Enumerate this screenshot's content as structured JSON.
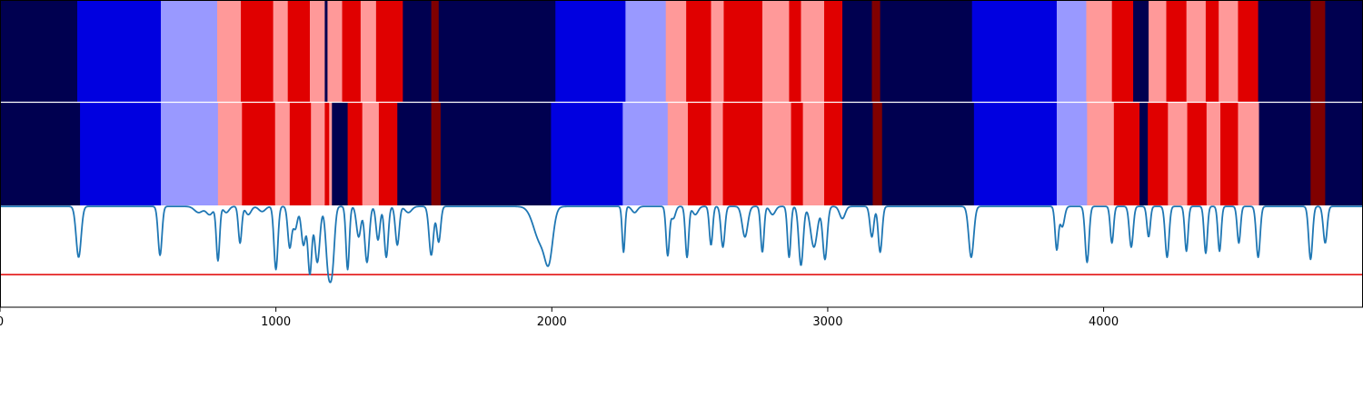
{
  "chart_data": {
    "type": "segmentation_with_signal",
    "xlim": [
      0,
      4940
    ],
    "xticks": [
      0,
      1000,
      2000,
      3000,
      4000
    ],
    "xtick_labels": [
      "0",
      "1000",
      "2000",
      "3000",
      "4000"
    ],
    "colors": {
      "0": "#000050",
      "1": "#0000e0",
      "2": "#9999ff",
      "3": "#ff9999",
      "4": "#e00000",
      "5": "#800000",
      "signal": "#1f77b4",
      "threshold": "#e00000"
    },
    "strips": [
      {
        "segments": [
          [
            0,
            280,
            0
          ],
          [
            280,
            583,
            1
          ],
          [
            583,
            787,
            2
          ],
          [
            787,
            873,
            3
          ],
          [
            873,
            990,
            4
          ],
          [
            990,
            1043,
            3
          ],
          [
            1043,
            1123,
            4
          ],
          [
            1123,
            1177,
            3
          ],
          [
            1177,
            1187,
            0
          ],
          [
            1187,
            1240,
            3
          ],
          [
            1240,
            1307,
            4
          ],
          [
            1307,
            1363,
            3
          ],
          [
            1363,
            1460,
            4
          ],
          [
            1460,
            1563,
            0
          ],
          [
            1563,
            1590,
            5
          ],
          [
            1590,
            2013,
            0
          ],
          [
            2013,
            2267,
            1
          ],
          [
            2267,
            2413,
            2
          ],
          [
            2413,
            2487,
            3
          ],
          [
            2487,
            2577,
            4
          ],
          [
            2577,
            2623,
            3
          ],
          [
            2623,
            2763,
            4
          ],
          [
            2763,
            2860,
            3
          ],
          [
            2860,
            2903,
            4
          ],
          [
            2903,
            2987,
            3
          ],
          [
            2987,
            3053,
            4
          ],
          [
            3053,
            3160,
            0
          ],
          [
            3160,
            3190,
            5
          ],
          [
            3190,
            3523,
            0
          ],
          [
            3523,
            3830,
            1
          ],
          [
            3830,
            3937,
            2
          ],
          [
            3937,
            4030,
            3
          ],
          [
            4030,
            4107,
            4
          ],
          [
            4107,
            4163,
            0
          ],
          [
            4163,
            4227,
            3
          ],
          [
            4227,
            4300,
            4
          ],
          [
            4300,
            4370,
            3
          ],
          [
            4370,
            4417,
            4
          ],
          [
            4417,
            4487,
            3
          ],
          [
            4487,
            4560,
            4
          ],
          [
            4560,
            4750,
            0
          ],
          [
            4750,
            4803,
            5
          ],
          [
            4803,
            4940,
            0
          ]
        ]
      },
      {
        "segments": [
          [
            0,
            290,
            0
          ],
          [
            290,
            583,
            1
          ],
          [
            583,
            790,
            2
          ],
          [
            790,
            877,
            3
          ],
          [
            877,
            997,
            4
          ],
          [
            997,
            1050,
            3
          ],
          [
            1050,
            1127,
            4
          ],
          [
            1127,
            1177,
            3
          ],
          [
            1177,
            1193,
            4
          ],
          [
            1193,
            1203,
            3
          ],
          [
            1203,
            1260,
            0
          ],
          [
            1260,
            1313,
            4
          ],
          [
            1313,
            1373,
            3
          ],
          [
            1373,
            1440,
            4
          ],
          [
            1440,
            1563,
            0
          ],
          [
            1563,
            1597,
            5
          ],
          [
            1597,
            1997,
            0
          ],
          [
            1997,
            2257,
            1
          ],
          [
            2257,
            2420,
            2
          ],
          [
            2420,
            2493,
            3
          ],
          [
            2493,
            2577,
            4
          ],
          [
            2577,
            2620,
            3
          ],
          [
            2620,
            2763,
            4
          ],
          [
            2763,
            2867,
            3
          ],
          [
            2867,
            2910,
            4
          ],
          [
            2910,
            2987,
            3
          ],
          [
            2987,
            3053,
            4
          ],
          [
            3053,
            3163,
            0
          ],
          [
            3163,
            3197,
            5
          ],
          [
            3197,
            3530,
            0
          ],
          [
            3530,
            3830,
            1
          ],
          [
            3830,
            3940,
            2
          ],
          [
            3940,
            4037,
            3
          ],
          [
            4037,
            4130,
            4
          ],
          [
            4130,
            4160,
            0
          ],
          [
            4160,
            4233,
            4
          ],
          [
            4233,
            4303,
            3
          ],
          [
            4303,
            4373,
            4
          ],
          [
            4373,
            4423,
            3
          ],
          [
            4423,
            4487,
            4
          ],
          [
            4487,
            4563,
            3
          ],
          [
            4563,
            4750,
            0
          ],
          [
            4750,
            4803,
            5
          ],
          [
            4803,
            4940,
            0
          ]
        ]
      }
    ],
    "signal": {
      "ylim": [
        -1.0,
        0.0
      ],
      "baseline": -0.01,
      "threshold": -0.68,
      "dips": [
        [
          285,
          0.5,
          9
        ],
        [
          580,
          0.48,
          7
        ],
        [
          720,
          0.06,
          15
        ],
        [
          760,
          0.08,
          12
        ],
        [
          790,
          0.53,
          6
        ],
        [
          820,
          0.06,
          10
        ],
        [
          870,
          0.36,
          6
        ],
        [
          900,
          0.08,
          10
        ],
        [
          950,
          0.05,
          12
        ],
        [
          1000,
          0.62,
          7
        ],
        [
          1050,
          0.4,
          7
        ],
        [
          1070,
          0.22,
          8
        ],
        [
          1100,
          0.38,
          8
        ],
        [
          1123,
          0.66,
          7
        ],
        [
          1150,
          0.55,
          9
        ],
        [
          1190,
          0.6,
          9
        ],
        [
          1205,
          0.5,
          8
        ],
        [
          1260,
          0.62,
          6
        ],
        [
          1300,
          0.3,
          8
        ],
        [
          1330,
          0.55,
          8
        ],
        [
          1370,
          0.33,
          7
        ],
        [
          1400,
          0.5,
          7
        ],
        [
          1440,
          0.38,
          7
        ],
        [
          1480,
          0.06,
          12
        ],
        [
          1563,
          0.48,
          8
        ],
        [
          1590,
          0.35,
          7
        ],
        [
          1960,
          0.35,
          25
        ],
        [
          1990,
          0.4,
          14
        ],
        [
          2260,
          0.45,
          5
        ],
        [
          2300,
          0.06,
          10
        ],
        [
          2420,
          0.48,
          6
        ],
        [
          2440,
          0.12,
          8
        ],
        [
          2490,
          0.5,
          6
        ],
        [
          2520,
          0.08,
          10
        ],
        [
          2577,
          0.38,
          6
        ],
        [
          2620,
          0.4,
          7
        ],
        [
          2700,
          0.3,
          10
        ],
        [
          2763,
          0.45,
          6
        ],
        [
          2800,
          0.08,
          10
        ],
        [
          2860,
          0.5,
          6
        ],
        [
          2903,
          0.58,
          8
        ],
        [
          2950,
          0.4,
          12
        ],
        [
          2990,
          0.52,
          8
        ],
        [
          3053,
          0.12,
          10
        ],
        [
          3160,
          0.3,
          7
        ],
        [
          3190,
          0.45,
          7
        ],
        [
          3520,
          0.5,
          9
        ],
        [
          3830,
          0.42,
          6
        ],
        [
          3850,
          0.2,
          8
        ],
        [
          3940,
          0.55,
          7
        ],
        [
          4030,
          0.36,
          6
        ],
        [
          4100,
          0.4,
          7
        ],
        [
          4163,
          0.3,
          6
        ],
        [
          4230,
          0.5,
          7
        ],
        [
          4300,
          0.44,
          6
        ],
        [
          4370,
          0.46,
          6
        ],
        [
          4420,
          0.44,
          6
        ],
        [
          4490,
          0.36,
          6
        ],
        [
          4560,
          0.5,
          7
        ],
        [
          4750,
          0.52,
          7
        ],
        [
          4803,
          0.36,
          7
        ]
      ]
    }
  }
}
